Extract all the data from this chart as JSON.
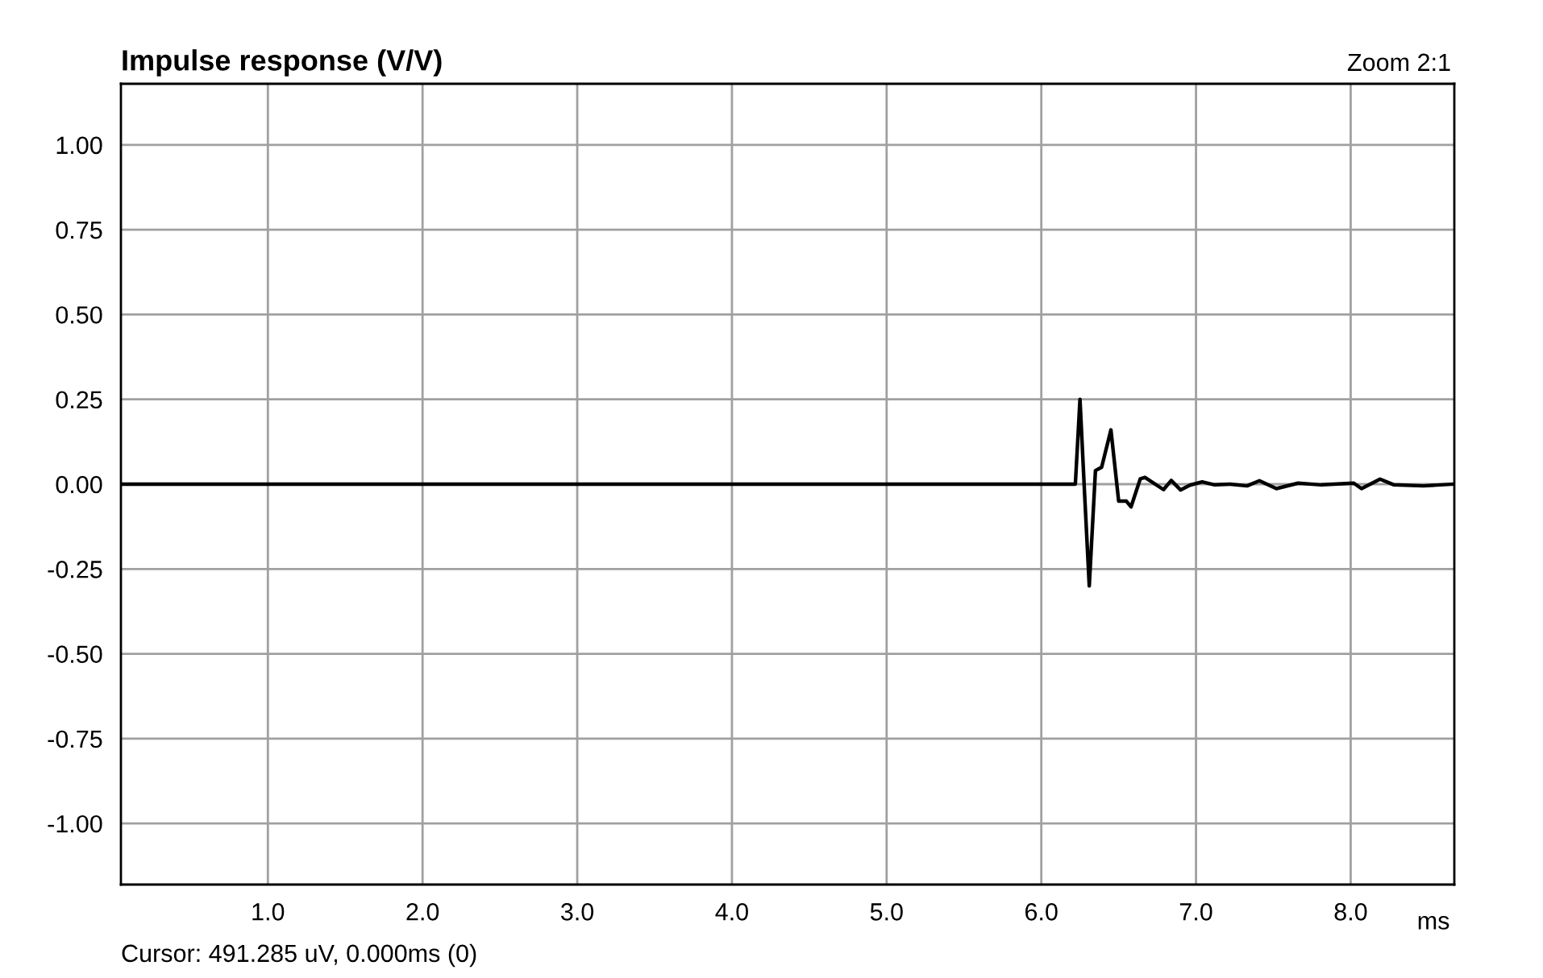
{
  "chart_data": {
    "type": "line",
    "title": "Impulse response (V/V)",
    "xlabel": "ms",
    "annotations": [
      "Zoom 2:1",
      "Cursor: 491.285 uV, 0.000ms (0)"
    ],
    "series": [
      {
        "color": "#000000",
        "x": [
          0.05,
          6.22,
          6.25,
          6.28,
          6.31,
          6.35,
          6.39,
          6.45,
          6.5,
          6.55,
          6.58,
          6.64,
          6.67,
          6.79,
          6.84,
          6.9,
          6.96,
          7.04,
          7.12,
          7.22,
          7.33,
          7.41,
          7.52,
          7.66,
          7.81,
          8.02,
          8.07,
          8.19,
          8.28,
          8.47,
          8.66
        ],
        "values": [
          0,
          0,
          0.25,
          -0.03,
          -0.3,
          0.04,
          0.05,
          0.16,
          -0.05,
          -0.05,
          -0.067,
          0.016,
          0.02,
          -0.016,
          0.011,
          -0.017,
          -0.003,
          0.007,
          -0.002,
          0,
          -0.005,
          0.01,
          -0.013,
          0.003,
          -0.002,
          0.003,
          -0.013,
          0.015,
          -0.002,
          -0.005,
          0
        ]
      }
    ],
    "xlim": [
      0.05,
      8.67
    ],
    "ylim": [
      -1.18,
      1.18
    ],
    "xticks": [
      {
        "value": 1,
        "label": "1.0"
      },
      {
        "value": 2,
        "label": "2.0"
      },
      {
        "value": 3,
        "label": "3.0"
      },
      {
        "value": 4,
        "label": "4.0"
      },
      {
        "value": 5,
        "label": "5.0"
      },
      {
        "value": 6,
        "label": "6.0"
      },
      {
        "value": 7,
        "label": "7.0"
      },
      {
        "value": 8,
        "label": "8.0"
      }
    ],
    "yticks": [
      {
        "value": 1,
        "label": "1.00"
      },
      {
        "value": 0.75,
        "label": "0.75"
      },
      {
        "value": 0.5,
        "label": "0.50"
      },
      {
        "value": 0.25,
        "label": "0.25"
      },
      {
        "value": 0,
        "label": "0.00"
      },
      {
        "value": -0.25,
        "label": "-0.25"
      },
      {
        "value": -0.5,
        "label": "-0.50"
      },
      {
        "value": -0.75,
        "label": "-0.75"
      },
      {
        "value": -1,
        "label": "-1.00"
      }
    ],
    "grid": true,
    "legend": false,
    "marker": "none",
    "line_style": "solid"
  }
}
